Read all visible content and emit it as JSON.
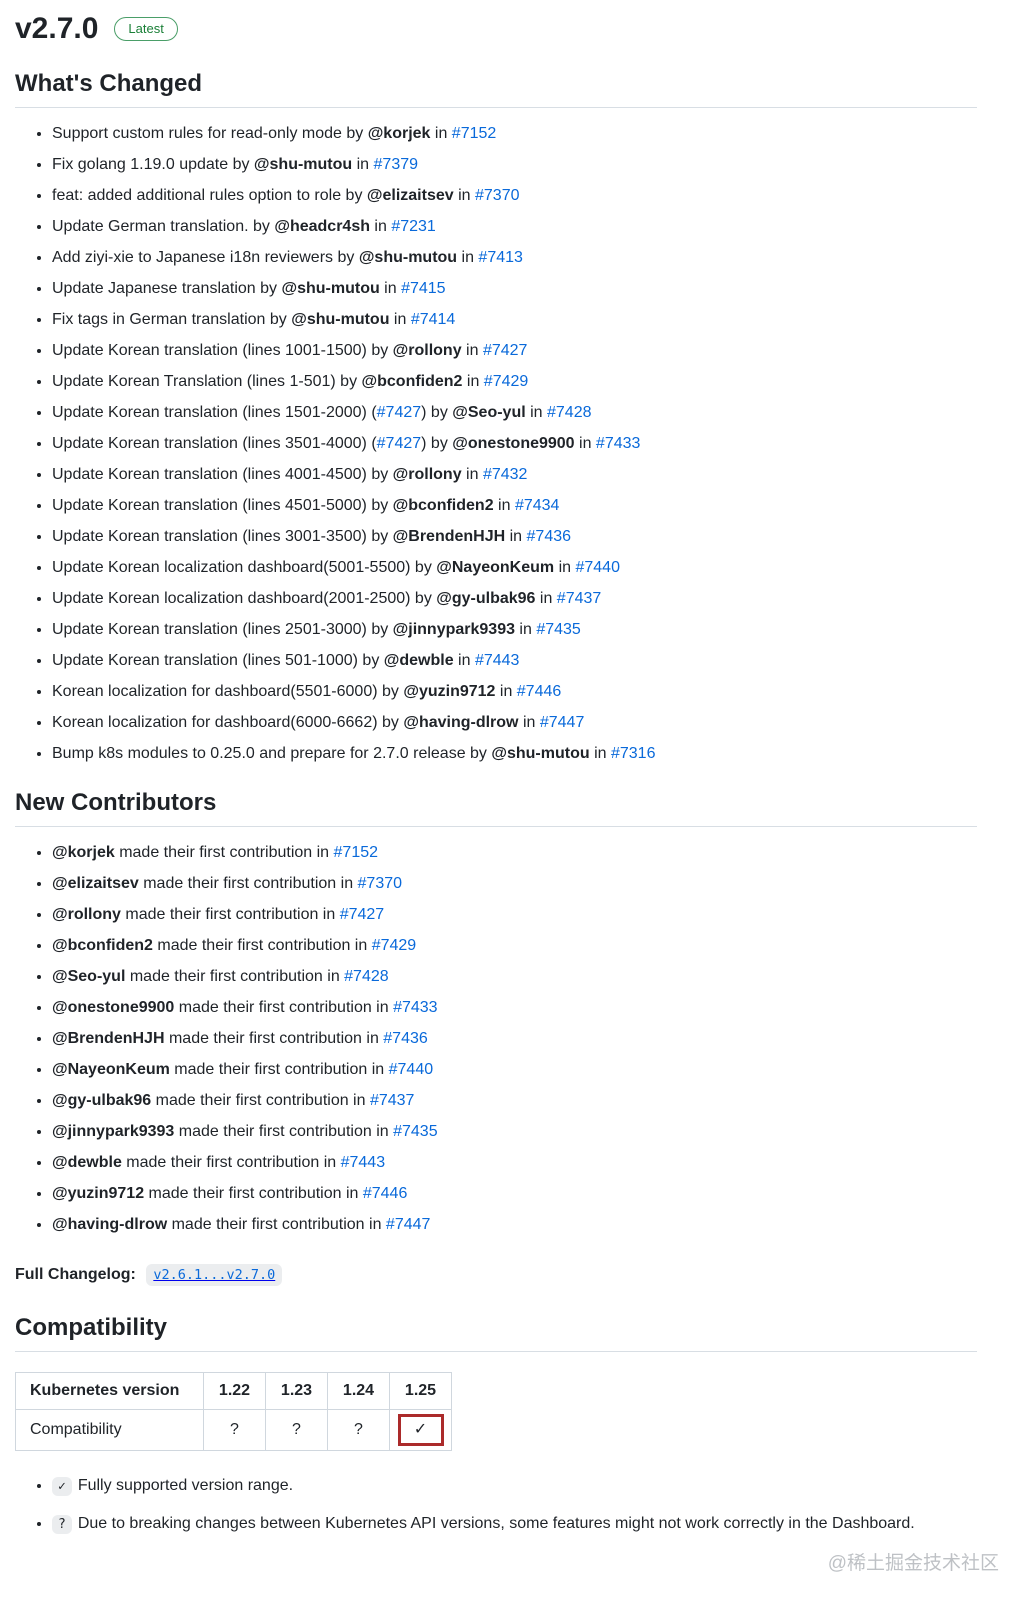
{
  "release": {
    "version": "v2.7.0",
    "badge": "Latest"
  },
  "colors": {
    "link_blue": "#0969da",
    "badge_green": "#1a7f37",
    "divider_gray": "#d8dee4",
    "table_border_gray": "#d0d7de",
    "annotation_red": "#ab2a2a",
    "text_dark": "#1f2328"
  },
  "sections": {
    "whats_changed": {
      "title": "What's Changed",
      "items": [
        {
          "parts": [
            [
              "t",
              "Support custom rules for read-only mode by "
            ],
            [
              "a",
              "@korjek"
            ],
            [
              "t",
              " in "
            ],
            [
              "l",
              "#7152"
            ]
          ]
        },
        {
          "parts": [
            [
              "t",
              "Fix golang 1.19.0 update by "
            ],
            [
              "a",
              "@shu-mutou"
            ],
            [
              "t",
              " in "
            ],
            [
              "l",
              "#7379"
            ]
          ]
        },
        {
          "parts": [
            [
              "t",
              "feat: added additional rules option to role by "
            ],
            [
              "a",
              "@elizaitsev"
            ],
            [
              "t",
              " in "
            ],
            [
              "l",
              "#7370"
            ]
          ]
        },
        {
          "parts": [
            [
              "t",
              "Update German translation. by "
            ],
            [
              "a",
              "@headcr4sh"
            ],
            [
              "t",
              " in "
            ],
            [
              "l",
              "#7231"
            ]
          ]
        },
        {
          "parts": [
            [
              "t",
              "Add ziyi-xie to Japanese i18n reviewers by "
            ],
            [
              "a",
              "@shu-mutou"
            ],
            [
              "t",
              " in "
            ],
            [
              "l",
              "#7413"
            ]
          ]
        },
        {
          "parts": [
            [
              "t",
              "Update Japanese translation by "
            ],
            [
              "a",
              "@shu-mutou"
            ],
            [
              "t",
              " in "
            ],
            [
              "l",
              "#7415"
            ]
          ]
        },
        {
          "parts": [
            [
              "t",
              "Fix tags in German translation by "
            ],
            [
              "a",
              "@shu-mutou"
            ],
            [
              "t",
              " in "
            ],
            [
              "l",
              "#7414"
            ]
          ]
        },
        {
          "parts": [
            [
              "t",
              "Update Korean translation (lines 1001-1500) by "
            ],
            [
              "a",
              "@rollony"
            ],
            [
              "t",
              " in "
            ],
            [
              "l",
              "#7427"
            ]
          ]
        },
        {
          "parts": [
            [
              "t",
              "Update Korean Translation (lines 1-501) by "
            ],
            [
              "a",
              "@bconfiden2"
            ],
            [
              "t",
              " in "
            ],
            [
              "l",
              "#7429"
            ]
          ]
        },
        {
          "parts": [
            [
              "t",
              "Update Korean translation (lines 1501-2000) ("
            ],
            [
              "l",
              "#7427"
            ],
            [
              "t",
              ") by "
            ],
            [
              "a",
              "@Seo-yul"
            ],
            [
              "t",
              " in "
            ],
            [
              "l",
              "#7428"
            ]
          ]
        },
        {
          "parts": [
            [
              "t",
              "Update Korean translation (lines 3501-4000) ("
            ],
            [
              "l",
              "#7427"
            ],
            [
              "t",
              ") by "
            ],
            [
              "a",
              "@onestone9900"
            ],
            [
              "t",
              " in "
            ],
            [
              "l",
              "#7433"
            ]
          ]
        },
        {
          "parts": [
            [
              "t",
              "Update Korean translation (lines 4001-4500) by "
            ],
            [
              "a",
              "@rollony"
            ],
            [
              "t",
              " in "
            ],
            [
              "l",
              "#7432"
            ]
          ]
        },
        {
          "parts": [
            [
              "t",
              "Update Korean translation (lines 4501-5000) by "
            ],
            [
              "a",
              "@bconfiden2"
            ],
            [
              "t",
              " in "
            ],
            [
              "l",
              "#7434"
            ]
          ]
        },
        {
          "parts": [
            [
              "t",
              "Update Korean translation (lines 3001-3500) by "
            ],
            [
              "a",
              "@BrendenHJH"
            ],
            [
              "t",
              " in "
            ],
            [
              "l",
              "#7436"
            ]
          ]
        },
        {
          "parts": [
            [
              "t",
              "Update Korean localization dashboard(5001-5500) by "
            ],
            [
              "a",
              "@NayeonKeum"
            ],
            [
              "t",
              " in "
            ],
            [
              "l",
              "#7440"
            ]
          ]
        },
        {
          "parts": [
            [
              "t",
              "Update Korean localization dashboard(2001-2500) by "
            ],
            [
              "a",
              "@gy-ulbak96"
            ],
            [
              "t",
              " in "
            ],
            [
              "l",
              "#7437"
            ]
          ]
        },
        {
          "parts": [
            [
              "t",
              "Update Korean translation (lines 2501-3000) by "
            ],
            [
              "a",
              "@jinnypark9393"
            ],
            [
              "t",
              " in "
            ],
            [
              "l",
              "#7435"
            ]
          ]
        },
        {
          "parts": [
            [
              "t",
              "Update Korean translation (lines 501-1000) by "
            ],
            [
              "a",
              "@dewble"
            ],
            [
              "t",
              " in "
            ],
            [
              "l",
              "#7443"
            ]
          ]
        },
        {
          "parts": [
            [
              "t",
              "Korean localization for dashboard(5501-6000) by "
            ],
            [
              "a",
              "@yuzin9712"
            ],
            [
              "t",
              " in "
            ],
            [
              "l",
              "#7446"
            ]
          ]
        },
        {
          "parts": [
            [
              "t",
              "Korean localization for dashboard(6000-6662) by "
            ],
            [
              "a",
              "@having-dlrow"
            ],
            [
              "t",
              " in "
            ],
            [
              "l",
              "#7447"
            ]
          ]
        },
        {
          "parts": [
            [
              "t",
              "Bump k8s modules to 0.25.0 and prepare for 2.7.0 release by "
            ],
            [
              "a",
              "@shu-mutou"
            ],
            [
              "t",
              " in "
            ],
            [
              "l",
              "#7316"
            ]
          ]
        }
      ]
    },
    "new_contributors": {
      "title": "New Contributors",
      "items": [
        {
          "parts": [
            [
              "a",
              "@korjek"
            ],
            [
              "t",
              " made their first contribution in "
            ],
            [
              "l",
              "#7152"
            ]
          ]
        },
        {
          "parts": [
            [
              "a",
              "@elizaitsev"
            ],
            [
              "t",
              " made their first contribution in "
            ],
            [
              "l",
              "#7370"
            ]
          ]
        },
        {
          "parts": [
            [
              "a",
              "@rollony"
            ],
            [
              "t",
              " made their first contribution in "
            ],
            [
              "l",
              "#7427"
            ]
          ]
        },
        {
          "parts": [
            [
              "a",
              "@bconfiden2"
            ],
            [
              "t",
              " made their first contribution in "
            ],
            [
              "l",
              "#7429"
            ]
          ]
        },
        {
          "parts": [
            [
              "a",
              "@Seo-yul"
            ],
            [
              "t",
              " made their first contribution in "
            ],
            [
              "l",
              "#7428"
            ]
          ]
        },
        {
          "parts": [
            [
              "a",
              "@onestone9900"
            ],
            [
              "t",
              " made their first contribution in "
            ],
            [
              "l",
              "#7433"
            ]
          ]
        },
        {
          "parts": [
            [
              "a",
              "@BrendenHJH"
            ],
            [
              "t",
              " made their first contribution in "
            ],
            [
              "l",
              "#7436"
            ]
          ]
        },
        {
          "parts": [
            [
              "a",
              "@NayeonKeum"
            ],
            [
              "t",
              " made their first contribution in "
            ],
            [
              "l",
              "#7440"
            ]
          ]
        },
        {
          "parts": [
            [
              "a",
              "@gy-ulbak96"
            ],
            [
              "t",
              " made their first contribution in "
            ],
            [
              "l",
              "#7437"
            ]
          ]
        },
        {
          "parts": [
            [
              "a",
              "@jinnypark9393"
            ],
            [
              "t",
              " made their first contribution in "
            ],
            [
              "l",
              "#7435"
            ]
          ]
        },
        {
          "parts": [
            [
              "a",
              "@dewble"
            ],
            [
              "t",
              " made their first contribution in "
            ],
            [
              "l",
              "#7443"
            ]
          ]
        },
        {
          "parts": [
            [
              "a",
              "@yuzin9712"
            ],
            [
              "t",
              " made their first contribution in "
            ],
            [
              "l",
              "#7446"
            ]
          ]
        },
        {
          "parts": [
            [
              "a",
              "@having-dlrow"
            ],
            [
              "t",
              " made their first contribution in "
            ],
            [
              "l",
              "#7447"
            ]
          ]
        }
      ]
    },
    "full_changelog": {
      "label": "Full Changelog:",
      "compare": "v2.6.1...v2.7.0"
    },
    "compatibility": {
      "title": "Compatibility",
      "table": {
        "header": [
          "Kubernetes version",
          "1.22",
          "1.23",
          "1.24",
          "1.25"
        ],
        "row": [
          "Compatibility",
          "?",
          "?",
          "?",
          "✓"
        ],
        "highlight_col": 4
      },
      "notes": [
        {
          "symbol": "✓",
          "text": "Fully supported version range."
        },
        {
          "symbol": "?",
          "text": "Due to breaking changes between Kubernetes API versions, some features might not work correctly in the Dashboard."
        }
      ]
    }
  },
  "watermark": "@稀土掘金技术社区"
}
